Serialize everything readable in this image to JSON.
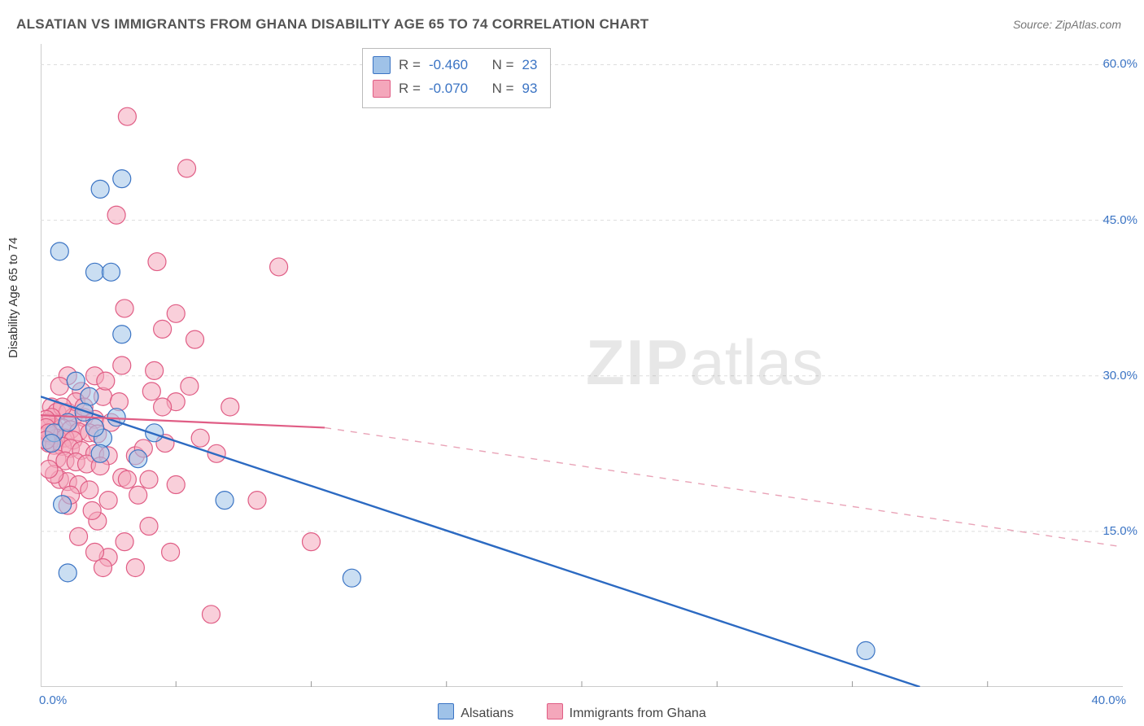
{
  "title": "ALSATIAN VS IMMIGRANTS FROM GHANA DISABILITY AGE 65 TO 74 CORRELATION CHART",
  "source": "Source: ZipAtlas.com",
  "ylabel": "Disability Age 65 to 74",
  "watermark": {
    "zip": "ZIP",
    "atlas": "atlas"
  },
  "chart": {
    "type": "scatter",
    "background_color": "#ffffff",
    "grid_color": "#dddddd",
    "border_color": "#cccccc",
    "xlim": [
      0,
      40
    ],
    "ylim": [
      0,
      62
    ],
    "xticks_minor": [
      5,
      10,
      15,
      20,
      25,
      30,
      35
    ],
    "yticks": [
      {
        "v": 15,
        "label": "15.0%"
      },
      {
        "v": 30,
        "label": "30.0%"
      },
      {
        "v": 45,
        "label": "45.0%"
      },
      {
        "v": 60,
        "label": "60.0%"
      }
    ],
    "xaxis_labels": {
      "min": "0.0%",
      "max": "40.0%"
    },
    "marker_radius": 11,
    "marker_stroke_width": 1.2,
    "title_fontsize": 17,
    "label_fontsize": 15,
    "stats_fontsize": 17
  },
  "series": [
    {
      "id": "alsatians",
      "legend_label": "Alsatians",
      "fill": "#9fc2e8",
      "stroke": "#3b74c4",
      "fill_opacity": 0.55,
      "R": "-0.460",
      "N": "23",
      "trend": {
        "x1": 0,
        "y1": 28.0,
        "x2": 32.5,
        "y2": 0,
        "color": "#2c6ac2",
        "width": 2.4,
        "dash": ""
      },
      "points": [
        [
          2.2,
          48.0
        ],
        [
          3.0,
          49.0
        ],
        [
          0.7,
          42.0
        ],
        [
          2.0,
          40.0
        ],
        [
          2.6,
          40.0
        ],
        [
          3.0,
          34.0
        ],
        [
          1.3,
          29.5
        ],
        [
          1.8,
          28.0
        ],
        [
          2.3,
          24.0
        ],
        [
          0.5,
          24.5
        ],
        [
          2.0,
          25.0
        ],
        [
          0.8,
          17.6
        ],
        [
          6.8,
          18.0
        ],
        [
          1.0,
          11.0
        ],
        [
          11.5,
          10.5
        ],
        [
          30.5,
          3.5
        ],
        [
          2.2,
          22.5
        ],
        [
          1.0,
          25.5
        ],
        [
          0.4,
          23.5
        ],
        [
          1.6,
          26.5
        ],
        [
          2.8,
          26.0
        ],
        [
          3.6,
          22.0
        ],
        [
          4.2,
          24.5
        ]
      ]
    },
    {
      "id": "ghana",
      "legend_label": "Immigrants from Ghana",
      "fill": "#f4a7bb",
      "stroke": "#e05d85",
      "fill_opacity": 0.55,
      "R": "-0.070",
      "N": "93",
      "trend_solid": {
        "x1": 0,
        "y1": 26.2,
        "x2": 10.5,
        "y2": 25.0,
        "color": "#e05d85",
        "width": 2.2
      },
      "trend_dashed": {
        "x1": 10.5,
        "y1": 25.0,
        "x2": 40,
        "y2": 13.5,
        "color": "#e9a3b7",
        "width": 1.4,
        "dash": "8 8"
      },
      "points": [
        [
          3.2,
          55.0
        ],
        [
          5.4,
          50.0
        ],
        [
          2.8,
          45.5
        ],
        [
          4.3,
          41.0
        ],
        [
          8.8,
          40.5
        ],
        [
          3.1,
          36.5
        ],
        [
          5.0,
          36.0
        ],
        [
          4.5,
          34.5
        ],
        [
          5.7,
          33.5
        ],
        [
          3.0,
          31.0
        ],
        [
          4.2,
          30.5
        ],
        [
          2.0,
          30.0
        ],
        [
          1.0,
          30.0
        ],
        [
          0.7,
          29.0
        ],
        [
          1.5,
          28.5
        ],
        [
          2.3,
          28.0
        ],
        [
          4.1,
          28.5
        ],
        [
          5.5,
          29.0
        ],
        [
          0.4,
          27.0
        ],
        [
          0.6,
          26.5
        ],
        [
          1.0,
          26.5
        ],
        [
          1.2,
          26.0
        ],
        [
          1.6,
          26.0
        ],
        [
          2.0,
          25.8
        ],
        [
          2.6,
          25.5
        ],
        [
          0.3,
          25.5
        ],
        [
          0.5,
          25.0
        ],
        [
          0.8,
          25.0
        ],
        [
          1.1,
          24.8
        ],
        [
          1.4,
          24.6
        ],
        [
          1.8,
          24.5
        ],
        [
          2.1,
          24.4
        ],
        [
          0.4,
          24.2
        ],
        [
          0.6,
          24.0
        ],
        [
          0.9,
          24.0
        ],
        [
          1.2,
          23.8
        ],
        [
          0.3,
          23.5
        ],
        [
          0.5,
          23.3
        ],
        [
          0.8,
          23.2
        ],
        [
          1.1,
          23.0
        ],
        [
          1.5,
          22.8
        ],
        [
          2.0,
          22.5
        ],
        [
          2.5,
          22.3
        ],
        [
          3.5,
          22.3
        ],
        [
          0.6,
          22.0
        ],
        [
          0.9,
          21.8
        ],
        [
          1.3,
          21.7
        ],
        [
          1.7,
          21.5
        ],
        [
          2.2,
          21.3
        ],
        [
          3.0,
          20.2
        ],
        [
          4.0,
          20.0
        ],
        [
          5.0,
          19.5
        ],
        [
          0.7,
          20.0
        ],
        [
          1.0,
          19.8
        ],
        [
          1.4,
          19.5
        ],
        [
          1.8,
          19.0
        ],
        [
          8.0,
          18.0
        ],
        [
          1.0,
          17.5
        ],
        [
          2.1,
          16.0
        ],
        [
          4.0,
          15.5
        ],
        [
          1.4,
          14.5
        ],
        [
          3.1,
          14.0
        ],
        [
          4.8,
          13.0
        ],
        [
          2.5,
          12.5
        ],
        [
          10.0,
          14.0
        ],
        [
          2.3,
          11.5
        ],
        [
          3.5,
          11.5
        ],
        [
          1.3,
          27.5
        ],
        [
          1.6,
          27.0
        ],
        [
          0.8,
          27.0
        ],
        [
          0.4,
          26.0
        ],
        [
          0.2,
          25.8
        ],
        [
          0.2,
          25.0
        ],
        [
          0.3,
          24.5
        ],
        [
          0.2,
          23.8
        ],
        [
          6.3,
          7.0
        ],
        [
          3.8,
          23.0
        ],
        [
          4.6,
          23.5
        ],
        [
          5.0,
          27.5
        ],
        [
          2.9,
          27.5
        ],
        [
          2.4,
          29.5
        ],
        [
          3.6,
          18.5
        ],
        [
          2.5,
          18.0
        ],
        [
          1.9,
          17.0
        ],
        [
          1.1,
          18.5
        ],
        [
          0.5,
          20.5
        ],
        [
          0.3,
          21.0
        ],
        [
          5.9,
          24.0
        ],
        [
          6.5,
          22.5
        ],
        [
          7.0,
          27.0
        ],
        [
          3.2,
          20.0
        ],
        [
          4.5,
          27.0
        ],
        [
          2.0,
          13.0
        ]
      ]
    }
  ],
  "legend_bottom": {
    "items": [
      {
        "key": "alsatians",
        "label": "Alsatians"
      },
      {
        "key": "ghana",
        "label": "Immigrants from Ghana"
      }
    ]
  },
  "stats_box": {
    "R_label": "R =",
    "N_label": "N ="
  }
}
